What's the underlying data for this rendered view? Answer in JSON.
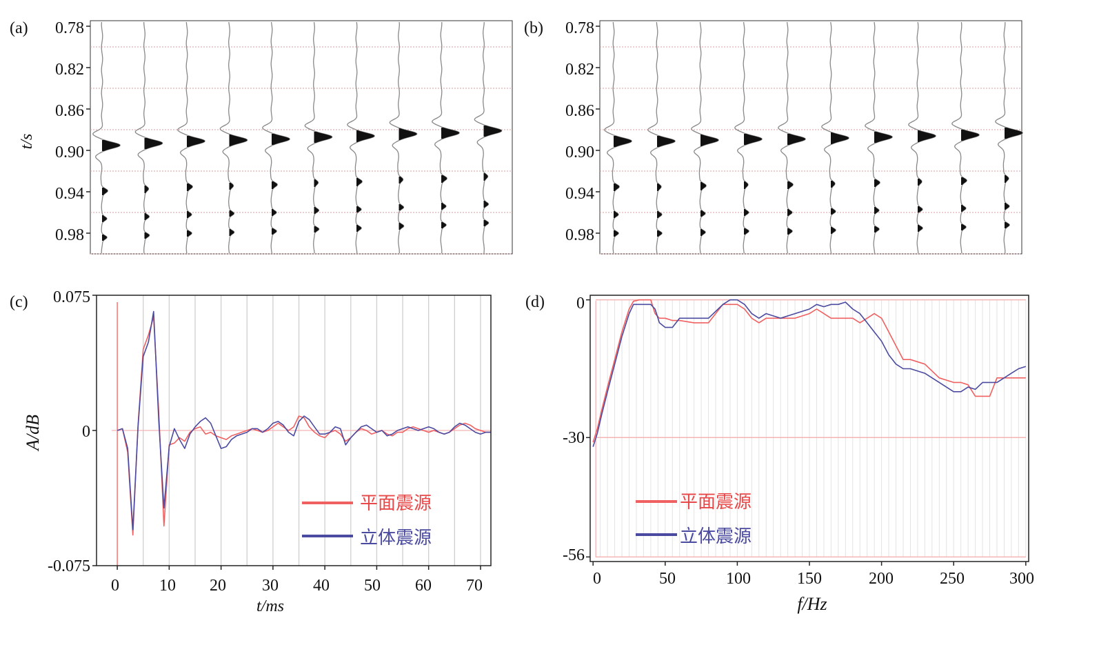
{
  "colors": {
    "red": "#f06060",
    "blue": "#4a4aa0",
    "gridRed": "#f4b4b4",
    "gridGray": "#cfcfcf"
  },
  "chart_data": [
    {
      "id": "a",
      "panel_label": "(a)",
      "type": "seismic-wiggle",
      "ylabel": "t/s",
      "yticks": [
        "0.78",
        "0.82",
        "0.86",
        "0.90",
        "0.94",
        "0.98"
      ],
      "ylim": [
        0.78,
        1.0
      ],
      "trace_count": 10,
      "first_break_times": [
        0.894,
        0.892,
        0.89,
        0.889,
        0.888,
        0.886,
        0.885,
        0.883,
        0.882,
        0.88
      ],
      "time_lines": [
        0.8,
        0.84,
        0.88,
        0.92,
        0.96,
        1.0
      ]
    },
    {
      "id": "b",
      "panel_label": "(b)",
      "type": "seismic-wiggle",
      "ylabel": "",
      "yticks": [
        "0.78",
        "0.82",
        "0.86",
        "0.90",
        "0.94",
        "0.98"
      ],
      "ylim": [
        0.78,
        1.0
      ],
      "trace_count": 10,
      "first_break_times": [
        0.89,
        0.89,
        0.889,
        0.888,
        0.888,
        0.887,
        0.886,
        0.885,
        0.884,
        0.882
      ],
      "time_lines": [
        0.8,
        0.84,
        0.88,
        0.92,
        0.96,
        1.0
      ]
    },
    {
      "id": "c",
      "panel_label": "(c)",
      "type": "line",
      "xlabel": "t/ms",
      "ylabel": "A/dB",
      "xlim": [
        -4,
        72
      ],
      "ylim": [
        -0.075,
        0.075
      ],
      "xticks": [
        "0",
        "10",
        "20",
        "30",
        "40",
        "50",
        "60",
        "70"
      ],
      "yticks": [
        "0.075",
        "0",
        "-0.075"
      ],
      "legend": [
        "平面震源",
        "立体震源"
      ],
      "legend_position": "bottom-right",
      "series": [
        {
          "name": "平面震源",
          "x": [
            0,
            1,
            2,
            3,
            4,
            5,
            6,
            7,
            8,
            9,
            10,
            11,
            12,
            13,
            14,
            15,
            16,
            17,
            18,
            19,
            20,
            21,
            22,
            23,
            24,
            25,
            26,
            27,
            28,
            29,
            30,
            31,
            32,
            33,
            34,
            35,
            36,
            37,
            38,
            39,
            40,
            41,
            42,
            43,
            44,
            45,
            46,
            47,
            48,
            49,
            50,
            51,
            52,
            53,
            54,
            55,
            56,
            57,
            58,
            59,
            60,
            61,
            62,
            63,
            64,
            65,
            66,
            67,
            68,
            69,
            70,
            71,
            72
          ],
          "y": [
            0,
            0.001,
            -0.012,
            -0.058,
            0.003,
            0.045,
            0.053,
            0.063,
            0.01,
            -0.053,
            -0.008,
            -0.007,
            -0.004,
            -0.006,
            -0.001,
            0.001,
            0.002,
            -0.002,
            -0.001,
            -0.003,
            -0.004,
            -0.005,
            -0.003,
            -0.002,
            -0.001,
            0,
            0.001,
            0,
            -0.001,
            0,
            0.002,
            0.004,
            0.002,
            0,
            0.002,
            0.008,
            0.007,
            0.002,
            -0.001,
            -0.003,
            -0.004,
            -0.001,
            0,
            -0.002,
            -0.006,
            -0.004,
            -0.001,
            0.001,
            0,
            -0.002,
            -0.001,
            0,
            -0.002,
            -0.003,
            -0.001,
            -0.001,
            0.001,
            0.002,
            0.001,
            0,
            -0.001,
            0,
            -0.001,
            -0.002,
            -0.001,
            0.001,
            0.003,
            0.004,
            0.003,
            0.001,
            0,
            -0.001,
            -0.001
          ]
        },
        {
          "name": "立体震源",
          "x": [
            0,
            1,
            2,
            3,
            4,
            5,
            6,
            7,
            8,
            9,
            10,
            11,
            12,
            13,
            14,
            15,
            16,
            17,
            18,
            19,
            20,
            21,
            22,
            23,
            24,
            25,
            26,
            27,
            28,
            29,
            30,
            31,
            32,
            33,
            34,
            35,
            36,
            37,
            38,
            39,
            40,
            41,
            42,
            43,
            44,
            45,
            46,
            47,
            48,
            49,
            50,
            51,
            52,
            53,
            54,
            55,
            56,
            57,
            58,
            59,
            60,
            61,
            62,
            63,
            64,
            65,
            66,
            67,
            68,
            69,
            70,
            71,
            72
          ],
          "y": [
            0,
            0.001,
            -0.01,
            -0.055,
            0.002,
            0.041,
            0.049,
            0.066,
            0.005,
            -0.043,
            -0.009,
            0.001,
            -0.005,
            -0.01,
            -0.002,
            0.002,
            0.005,
            0.007,
            0.004,
            -0.003,
            -0.01,
            -0.009,
            -0.005,
            -0.003,
            -0.002,
            -0.001,
            0.001,
            0.001,
            -0.001,
            0.001,
            0.004,
            0.005,
            0.003,
            -0.001,
            -0.003,
            0.005,
            0.008,
            0.006,
            0.002,
            -0.002,
            -0.002,
            -0.001,
            0.002,
            0.001,
            -0.008,
            -0.004,
            -0.001,
            0.002,
            0.003,
            0.001,
            -0.001,
            0,
            -0.003,
            -0.002,
            0,
            0.001,
            0.002,
            0.001,
            0,
            0.001,
            0.002,
            0.001,
            -0.001,
            -0.002,
            -0.001,
            0.002,
            0.004,
            0.003,
            0.001,
            -0.001,
            -0.002,
            -0.001,
            -0.001
          ]
        }
      ]
    },
    {
      "id": "d",
      "panel_label": "(d)",
      "type": "line",
      "xlabel": "f/Hz",
      "ylabel": "",
      "xlim": [
        -2,
        302
      ],
      "ylim": [
        -57,
        1
      ],
      "xticks": [
        "0",
        "50",
        "100",
        "150",
        "200",
        "250",
        "300"
      ],
      "yticks": [
        "0",
        "-30",
        "-56"
      ],
      "legend": [
        "平面震源",
        "立体震源"
      ],
      "legend_position": "bottom-left",
      "series": [
        {
          "name": "平面震源",
          "x": [
            0,
            3,
            6,
            10,
            15,
            20,
            25,
            28,
            32,
            36,
            40,
            43,
            46,
            50,
            55,
            60,
            70,
            80,
            90,
            100,
            105,
            110,
            115,
            120,
            130,
            140,
            150,
            155,
            160,
            165,
            170,
            175,
            180,
            185,
            190,
            195,
            200,
            205,
            210,
            215,
            220,
            230,
            240,
            250,
            255,
            260,
            265,
            270,
            275,
            280,
            285,
            290,
            295,
            300
          ],
          "y": [
            -31,
            -28,
            -24,
            -19,
            -13,
            -7,
            -2,
            -0.3,
            0,
            0,
            0,
            -3,
            -4,
            -4,
            -4.5,
            -4.5,
            -5,
            -5,
            -1,
            -1,
            -2,
            -4,
            -5,
            -4,
            -4,
            -4,
            -3,
            -2,
            -3,
            -4,
            -4,
            -4,
            -4,
            -5,
            -4,
            -3,
            -4,
            -7,
            -10,
            -13,
            -13,
            -14,
            -17,
            -18,
            -18,
            -18.5,
            -21,
            -21,
            -21,
            -17,
            -17,
            -17,
            -17,
            -17
          ]
        },
        {
          "name": "立体震源",
          "x": [
            0,
            3,
            6,
            10,
            15,
            20,
            25,
            28,
            32,
            36,
            40,
            43,
            46,
            50,
            55,
            60,
            70,
            80,
            90,
            95,
            100,
            105,
            110,
            115,
            120,
            130,
            140,
            150,
            155,
            160,
            165,
            170,
            175,
            180,
            185,
            190,
            195,
            200,
            205,
            210,
            215,
            220,
            230,
            240,
            250,
            255,
            260,
            265,
            270,
            275,
            280,
            285,
            290,
            295,
            300
          ],
          "y": [
            -32,
            -29,
            -25,
            -20,
            -14,
            -8,
            -3,
            -1,
            -1,
            -1,
            -1,
            -2,
            -5,
            -6,
            -6,
            -4,
            -4,
            -4,
            -1,
            0,
            0,
            -1,
            -3,
            -4,
            -3,
            -4,
            -3,
            -2,
            -1,
            -1.5,
            -1,
            -1,
            -0.5,
            -2,
            -3,
            -5,
            -7,
            -9,
            -12,
            -14,
            -15,
            -15,
            -16,
            -18,
            -20,
            -20,
            -19,
            -19.5,
            -18,
            -18,
            -18,
            -17,
            -16,
            -15,
            -14.5
          ]
        }
      ]
    }
  ]
}
